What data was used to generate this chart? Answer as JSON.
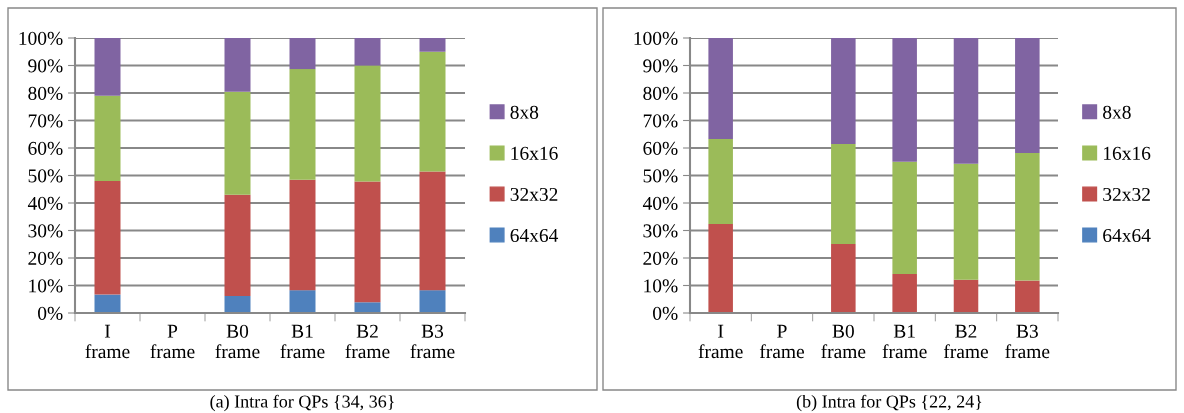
{
  "chart_data": [
    {
      "type": "bar",
      "stacked": true,
      "categories": [
        "I\nframe",
        "P\nframe",
        "B0\nframe",
        "B1\nframe",
        "B2\nframe",
        "B3\nframe"
      ],
      "series": [
        {
          "name": "64x64",
          "color": "#4f81bd",
          "values": [
            6.7,
            null,
            6.2,
            8.3,
            3.9,
            8.3
          ]
        },
        {
          "name": "32x32",
          "color": "#c0504d",
          "values": [
            41.3,
            null,
            36.8,
            40.2,
            43.9,
            43.2
          ]
        },
        {
          "name": "16x16",
          "color": "#9bbb59",
          "values": [
            31,
            null,
            37.5,
            40.2,
            42.2,
            43.5
          ]
        },
        {
          "name": "8x8",
          "color": "#8064a2",
          "values": [
            21,
            null,
            19.5,
            11.3,
            10,
            5
          ]
        }
      ],
      "ylim": [
        0,
        100
      ],
      "yticks": [
        {
          "value": 0,
          "label": "0%"
        },
        {
          "value": 10,
          "label": "10%"
        },
        {
          "value": 20,
          "label": "20%"
        },
        {
          "value": 30,
          "label": "30%"
        },
        {
          "value": 40,
          "label": "40%"
        },
        {
          "value": 50,
          "label": "50%"
        },
        {
          "value": 60,
          "label": "60%"
        },
        {
          "value": 70,
          "label": "70%"
        },
        {
          "value": 80,
          "label": "80%"
        },
        {
          "value": 90,
          "label": "90%"
        },
        {
          "value": 100,
          "label": "100%"
        }
      ],
      "grid": "y",
      "legend": "right",
      "annotations": [
        "(a) Intra for QPs {34, 36}"
      ]
    },
    {
      "type": "bar",
      "stacked": true,
      "categories": [
        "I\nframe",
        "P\nframe",
        "B0\nframe",
        "B1\nframe",
        "B2\nframe",
        "B3\nframe"
      ],
      "series": [
        {
          "name": "64x64",
          "color": "#4f81bd",
          "values": [
            0,
            null,
            0,
            0,
            0,
            0
          ]
        },
        {
          "name": "32x32",
          "color": "#c0504d",
          "values": [
            32.4,
            null,
            25.1,
            14.2,
            12.1,
            11.8
          ]
        },
        {
          "name": "16x16",
          "color": "#9bbb59",
          "values": [
            30.9,
            null,
            36.4,
            40.8,
            42.2,
            46.4
          ]
        },
        {
          "name": "8x8",
          "color": "#8064a2",
          "values": [
            36.7,
            null,
            38.5,
            45,
            45.7,
            41.8
          ]
        }
      ],
      "ylim": [
        0,
        100
      ],
      "yticks": [
        {
          "value": 0,
          "label": "0%"
        },
        {
          "value": 10,
          "label": "10%"
        },
        {
          "value": 20,
          "label": "20%"
        },
        {
          "value": 30,
          "label": "30%"
        },
        {
          "value": 40,
          "label": "40%"
        },
        {
          "value": 50,
          "label": "50%"
        },
        {
          "value": 60,
          "label": "60%"
        },
        {
          "value": 70,
          "label": "70%"
        },
        {
          "value": 80,
          "label": "80%"
        },
        {
          "value": 90,
          "label": "90%"
        },
        {
          "value": 100,
          "label": "100%"
        }
      ],
      "grid": "y",
      "legend": "right",
      "annotations": [
        "(b) Intra for QPs {22, 24}"
      ]
    }
  ]
}
